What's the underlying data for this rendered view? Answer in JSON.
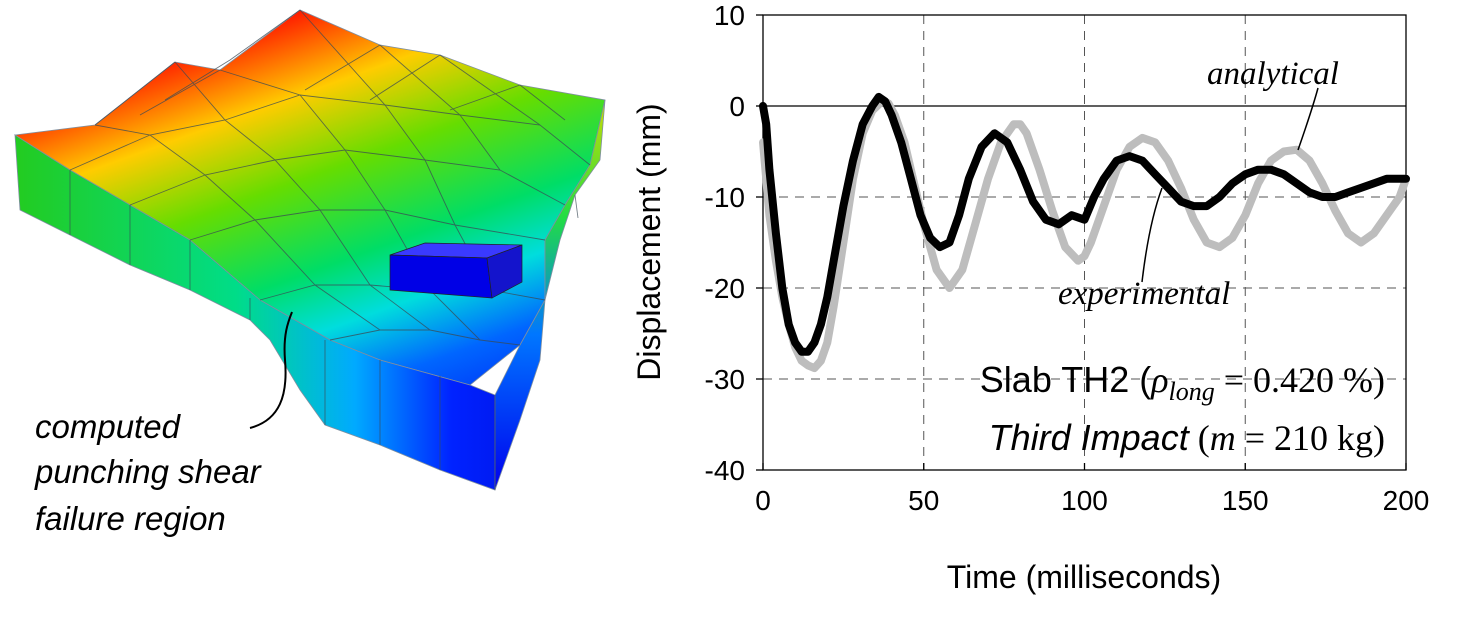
{
  "fe_model": {
    "annotation_lines": [
      "computed",
      "punching shear",
      "failure region"
    ]
  },
  "chart_data": {
    "type": "line",
    "xlabel": "Time (milliseconds)",
    "ylabel": "Displacement (mm)",
    "xlim": [
      0,
      200
    ],
    "ylim": [
      -40,
      10
    ],
    "xticks": [
      "0",
      "50",
      "100",
      "150",
      "200"
    ],
    "yticks": [
      "10",
      "0",
      "-10",
      "-20",
      "-30",
      "-40"
    ],
    "grid": "dashed",
    "colors": {
      "experimental": "#000000",
      "analytical": "#bdbdbd"
    },
    "callouts": {
      "analytical": "analytical",
      "experimental": "experimental"
    },
    "annotation": {
      "line1_a": "Slab TH2 (",
      "line1_rho": "ρ",
      "line1_sub": "long",
      "line1_b": " = 0.420 %)",
      "line2_a": "Third Impact",
      "line2_b": " (",
      "line2_m": "m",
      "line2_c": " = 210 kg)"
    },
    "series": [
      {
        "key": "experimental",
        "x": [
          0,
          1,
          2,
          4,
          6,
          8,
          10,
          12,
          14,
          16,
          18,
          20,
          22,
          25,
          28,
          31,
          34,
          36,
          38,
          40,
          43,
          46,
          49,
          52,
          55,
          58,
          61,
          64,
          68,
          72,
          76,
          80,
          84,
          88,
          92,
          96,
          100,
          103,
          106,
          110,
          114,
          118,
          122,
          126,
          130,
          134,
          138,
          142,
          146,
          150,
          154,
          158,
          162,
          166,
          170,
          174,
          178,
          182,
          186,
          190,
          194,
          198,
          200
        ],
        "y": [
          0,
          -2,
          -7,
          -14,
          -20,
          -24,
          -26,
          -27,
          -27,
          -26,
          -24,
          -21,
          -17,
          -11,
          -6,
          -2,
          0,
          1,
          0.5,
          -1,
          -4,
          -8,
          -12,
          -14.5,
          -15.5,
          -15,
          -12,
          -8,
          -4.5,
          -3,
          -4,
          -7,
          -10.5,
          -12.5,
          -13,
          -12,
          -12.5,
          -10,
          -8,
          -6,
          -5.5,
          -6,
          -7.5,
          -9,
          -10.5,
          -11,
          -11,
          -10,
          -8.5,
          -7.5,
          -7,
          -7,
          -7.5,
          -8.5,
          -9.5,
          -10,
          -10,
          -9.5,
          -9,
          -8.5,
          -8,
          -8,
          -8
        ]
      },
      {
        "key": "analytical",
        "x": [
          0,
          1,
          2,
          4,
          6,
          8,
          10,
          12,
          14,
          16,
          18,
          20,
          22,
          25,
          28,
          31,
          34,
          37,
          39,
          41,
          44,
          47,
          50,
          54,
          58,
          62,
          66,
          70,
          74,
          78,
          80,
          82,
          86,
          90,
          94,
          98,
          100,
          102,
          106,
          110,
          114,
          118,
          122,
          126,
          130,
          134,
          138,
          142,
          146,
          150,
          154,
          158,
          162,
          166,
          170,
          174,
          178,
          182,
          186,
          190,
          194,
          198,
          200
        ],
        "y": [
          -4,
          -8,
          -12,
          -17,
          -21,
          -24,
          -26.5,
          -28,
          -28.5,
          -28.8,
          -28,
          -26,
          -22,
          -15,
          -8,
          -3,
          -0.5,
          0.5,
          0.3,
          -1,
          -4,
          -8.5,
          -13,
          -18,
          -20,
          -18,
          -13,
          -8,
          -4,
          -2,
          -2,
          -3,
          -7,
          -11.5,
          -15.5,
          -17,
          -16.5,
          -15,
          -11,
          -7,
          -4.5,
          -3.5,
          -4,
          -6,
          -9,
          -12.5,
          -15,
          -15.5,
          -14.5,
          -12,
          -8.5,
          -6,
          -5,
          -4.8,
          -6,
          -8.5,
          -11.5,
          -14,
          -15,
          -14,
          -12,
          -10,
          -8
        ]
      }
    ]
  }
}
